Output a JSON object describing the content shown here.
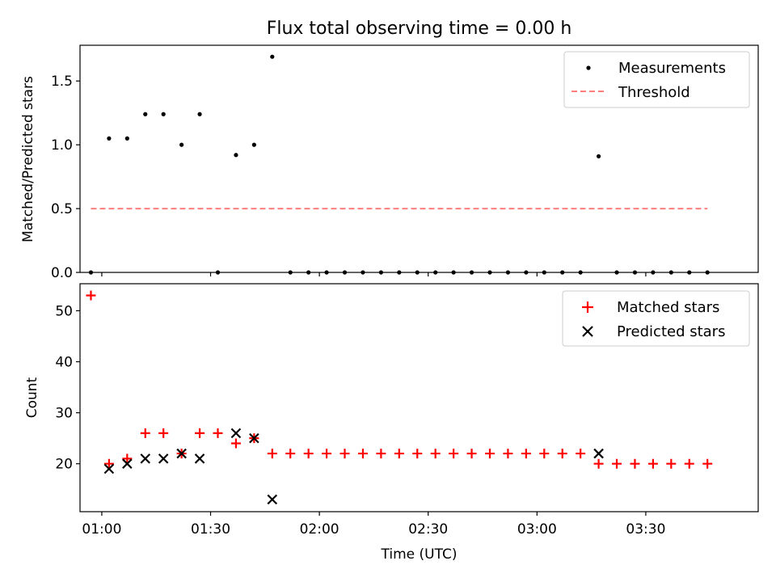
{
  "title": "Flux total observing time = 0.00 h",
  "chart_data": [
    {
      "type": "scatter",
      "ylabel": "Matched/Predicted stars",
      "ylim": [
        0,
        1.78
      ],
      "yticks": [
        0.0,
        0.5,
        1.0,
        1.5
      ],
      "ytick_labels": [
        "0.0",
        "0.5",
        "1.0",
        "1.5"
      ],
      "xlim": [
        "00:54",
        "04:01"
      ],
      "grid": false,
      "legend_position": "top-right",
      "series": [
        {
          "name": "Measurements",
          "kind": "scatter",
          "marker": "dot",
          "color": "#000000",
          "points": [
            [
              "00:57",
              0.0
            ],
            [
              "01:02",
              1.05
            ],
            [
              "01:07",
              1.05
            ],
            [
              "01:12",
              1.24
            ],
            [
              "01:17",
              1.24
            ],
            [
              "01:22",
              1.0
            ],
            [
              "01:27",
              1.24
            ],
            [
              "01:37",
              0.92
            ],
            [
              "01:42",
              1.0
            ],
            [
              "01:47",
              1.69
            ],
            [
              "01:32",
              0.0
            ],
            [
              "01:52",
              0.0
            ],
            [
              "01:57",
              0.0
            ],
            [
              "02:02",
              0.0
            ],
            [
              "02:07",
              0.0
            ],
            [
              "02:12",
              0.0
            ],
            [
              "02:17",
              0.0
            ],
            [
              "02:22",
              0.0
            ],
            [
              "02:27",
              0.0
            ],
            [
              "02:32",
              0.0
            ],
            [
              "02:37",
              0.0
            ],
            [
              "02:42",
              0.0
            ],
            [
              "02:47",
              0.0
            ],
            [
              "02:52",
              0.0
            ],
            [
              "02:57",
              0.0
            ],
            [
              "03:02",
              0.0
            ],
            [
              "03:07",
              0.0
            ],
            [
              "03:12",
              0.0
            ],
            [
              "03:17",
              0.91
            ],
            [
              "03:22",
              0.0
            ],
            [
              "03:27",
              0.0
            ],
            [
              "03:32",
              0.0
            ],
            [
              "03:37",
              0.0
            ],
            [
              "03:42",
              0.0
            ],
            [
              "03:47",
              0.0
            ]
          ]
        },
        {
          "name": "Threshold",
          "kind": "line",
          "style": "dashed",
          "color": "#ff7f7f",
          "points": [
            [
              "00:57",
              0.5
            ],
            [
              "03:47",
              0.5
            ]
          ]
        }
      ]
    },
    {
      "type": "scatter",
      "xlabel": "Time (UTC)",
      "ylabel": "Count",
      "ylim": [
        10.6,
        55.3
      ],
      "yticks": [
        20,
        30,
        40,
        50
      ],
      "ytick_labels": [
        "20",
        "30",
        "40",
        "50"
      ],
      "xlim": [
        "00:54",
        "04:01"
      ],
      "xticks": [
        "01:00",
        "01:30",
        "02:00",
        "02:30",
        "03:00",
        "03:30"
      ],
      "xtick_labels": [
        "01:00",
        "01:30",
        "02:00",
        "02:30",
        "03:00",
        "03:30"
      ],
      "grid": false,
      "legend_position": "top-right",
      "series": [
        {
          "name": "Matched stars",
          "kind": "scatter",
          "marker": "plus",
          "color": "#ff0000",
          "points": [
            [
              "00:57",
              53
            ],
            [
              "01:02",
              20
            ],
            [
              "01:07",
              21
            ],
            [
              "01:12",
              26
            ],
            [
              "01:17",
              26
            ],
            [
              "01:22",
              22
            ],
            [
              "01:27",
              26
            ],
            [
              "01:32",
              26
            ],
            [
              "01:37",
              24
            ],
            [
              "01:42",
              25
            ],
            [
              "01:47",
              22
            ],
            [
              "01:52",
              22
            ],
            [
              "01:57",
              22
            ],
            [
              "02:02",
              22
            ],
            [
              "02:07",
              22
            ],
            [
              "02:12",
              22
            ],
            [
              "02:17",
              22
            ],
            [
              "02:22",
              22
            ],
            [
              "02:27",
              22
            ],
            [
              "02:32",
              22
            ],
            [
              "02:37",
              22
            ],
            [
              "02:42",
              22
            ],
            [
              "02:47",
              22
            ],
            [
              "02:52",
              22
            ],
            [
              "02:57",
              22
            ],
            [
              "03:02",
              22
            ],
            [
              "03:07",
              22
            ],
            [
              "03:12",
              22
            ],
            [
              "03:17",
              20
            ],
            [
              "03:22",
              20
            ],
            [
              "03:27",
              20
            ],
            [
              "03:32",
              20
            ],
            [
              "03:37",
              20
            ],
            [
              "03:42",
              20
            ],
            [
              "03:47",
              20
            ]
          ]
        },
        {
          "name": "Predicted stars",
          "kind": "scatter",
          "marker": "x",
          "color": "#000000",
          "points": [
            [
              "01:02",
              19
            ],
            [
              "01:07",
              20
            ],
            [
              "01:12",
              21
            ],
            [
              "01:17",
              21
            ],
            [
              "01:22",
              22
            ],
            [
              "01:27",
              21
            ],
            [
              "01:37",
              26
            ],
            [
              "01:42",
              25
            ],
            [
              "01:47",
              13
            ],
            [
              "03:17",
              22
            ]
          ]
        }
      ]
    }
  ]
}
